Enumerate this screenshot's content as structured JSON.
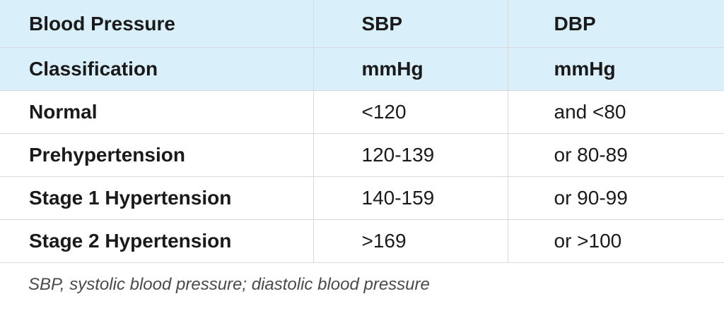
{
  "table": {
    "header": {
      "row1": [
        "Blood Pressure",
        "SBP",
        "DBP"
      ],
      "row2": [
        "Classification",
        "mmHg",
        "mmHg"
      ]
    },
    "rows": [
      {
        "category": "Normal",
        "sbp": "<120",
        "dbp": "and <80"
      },
      {
        "category": "Prehypertension",
        "sbp": "120-139",
        "dbp": "or 80-89"
      },
      {
        "category": "Stage 1 Hypertension",
        "sbp": "140-159",
        "dbp": "or 90-99"
      },
      {
        "category": "Stage 2 Hypertension",
        "sbp": ">169",
        "dbp": "or >100"
      }
    ]
  },
  "footnote": "SBP, systolic blood pressure; diastolic blood pressure",
  "colors": {
    "header_background": "#d9f0fb",
    "grid_line": "#d9d9d9",
    "text": "#1a1a1a",
    "footnote_text": "#4a4a4a"
  }
}
